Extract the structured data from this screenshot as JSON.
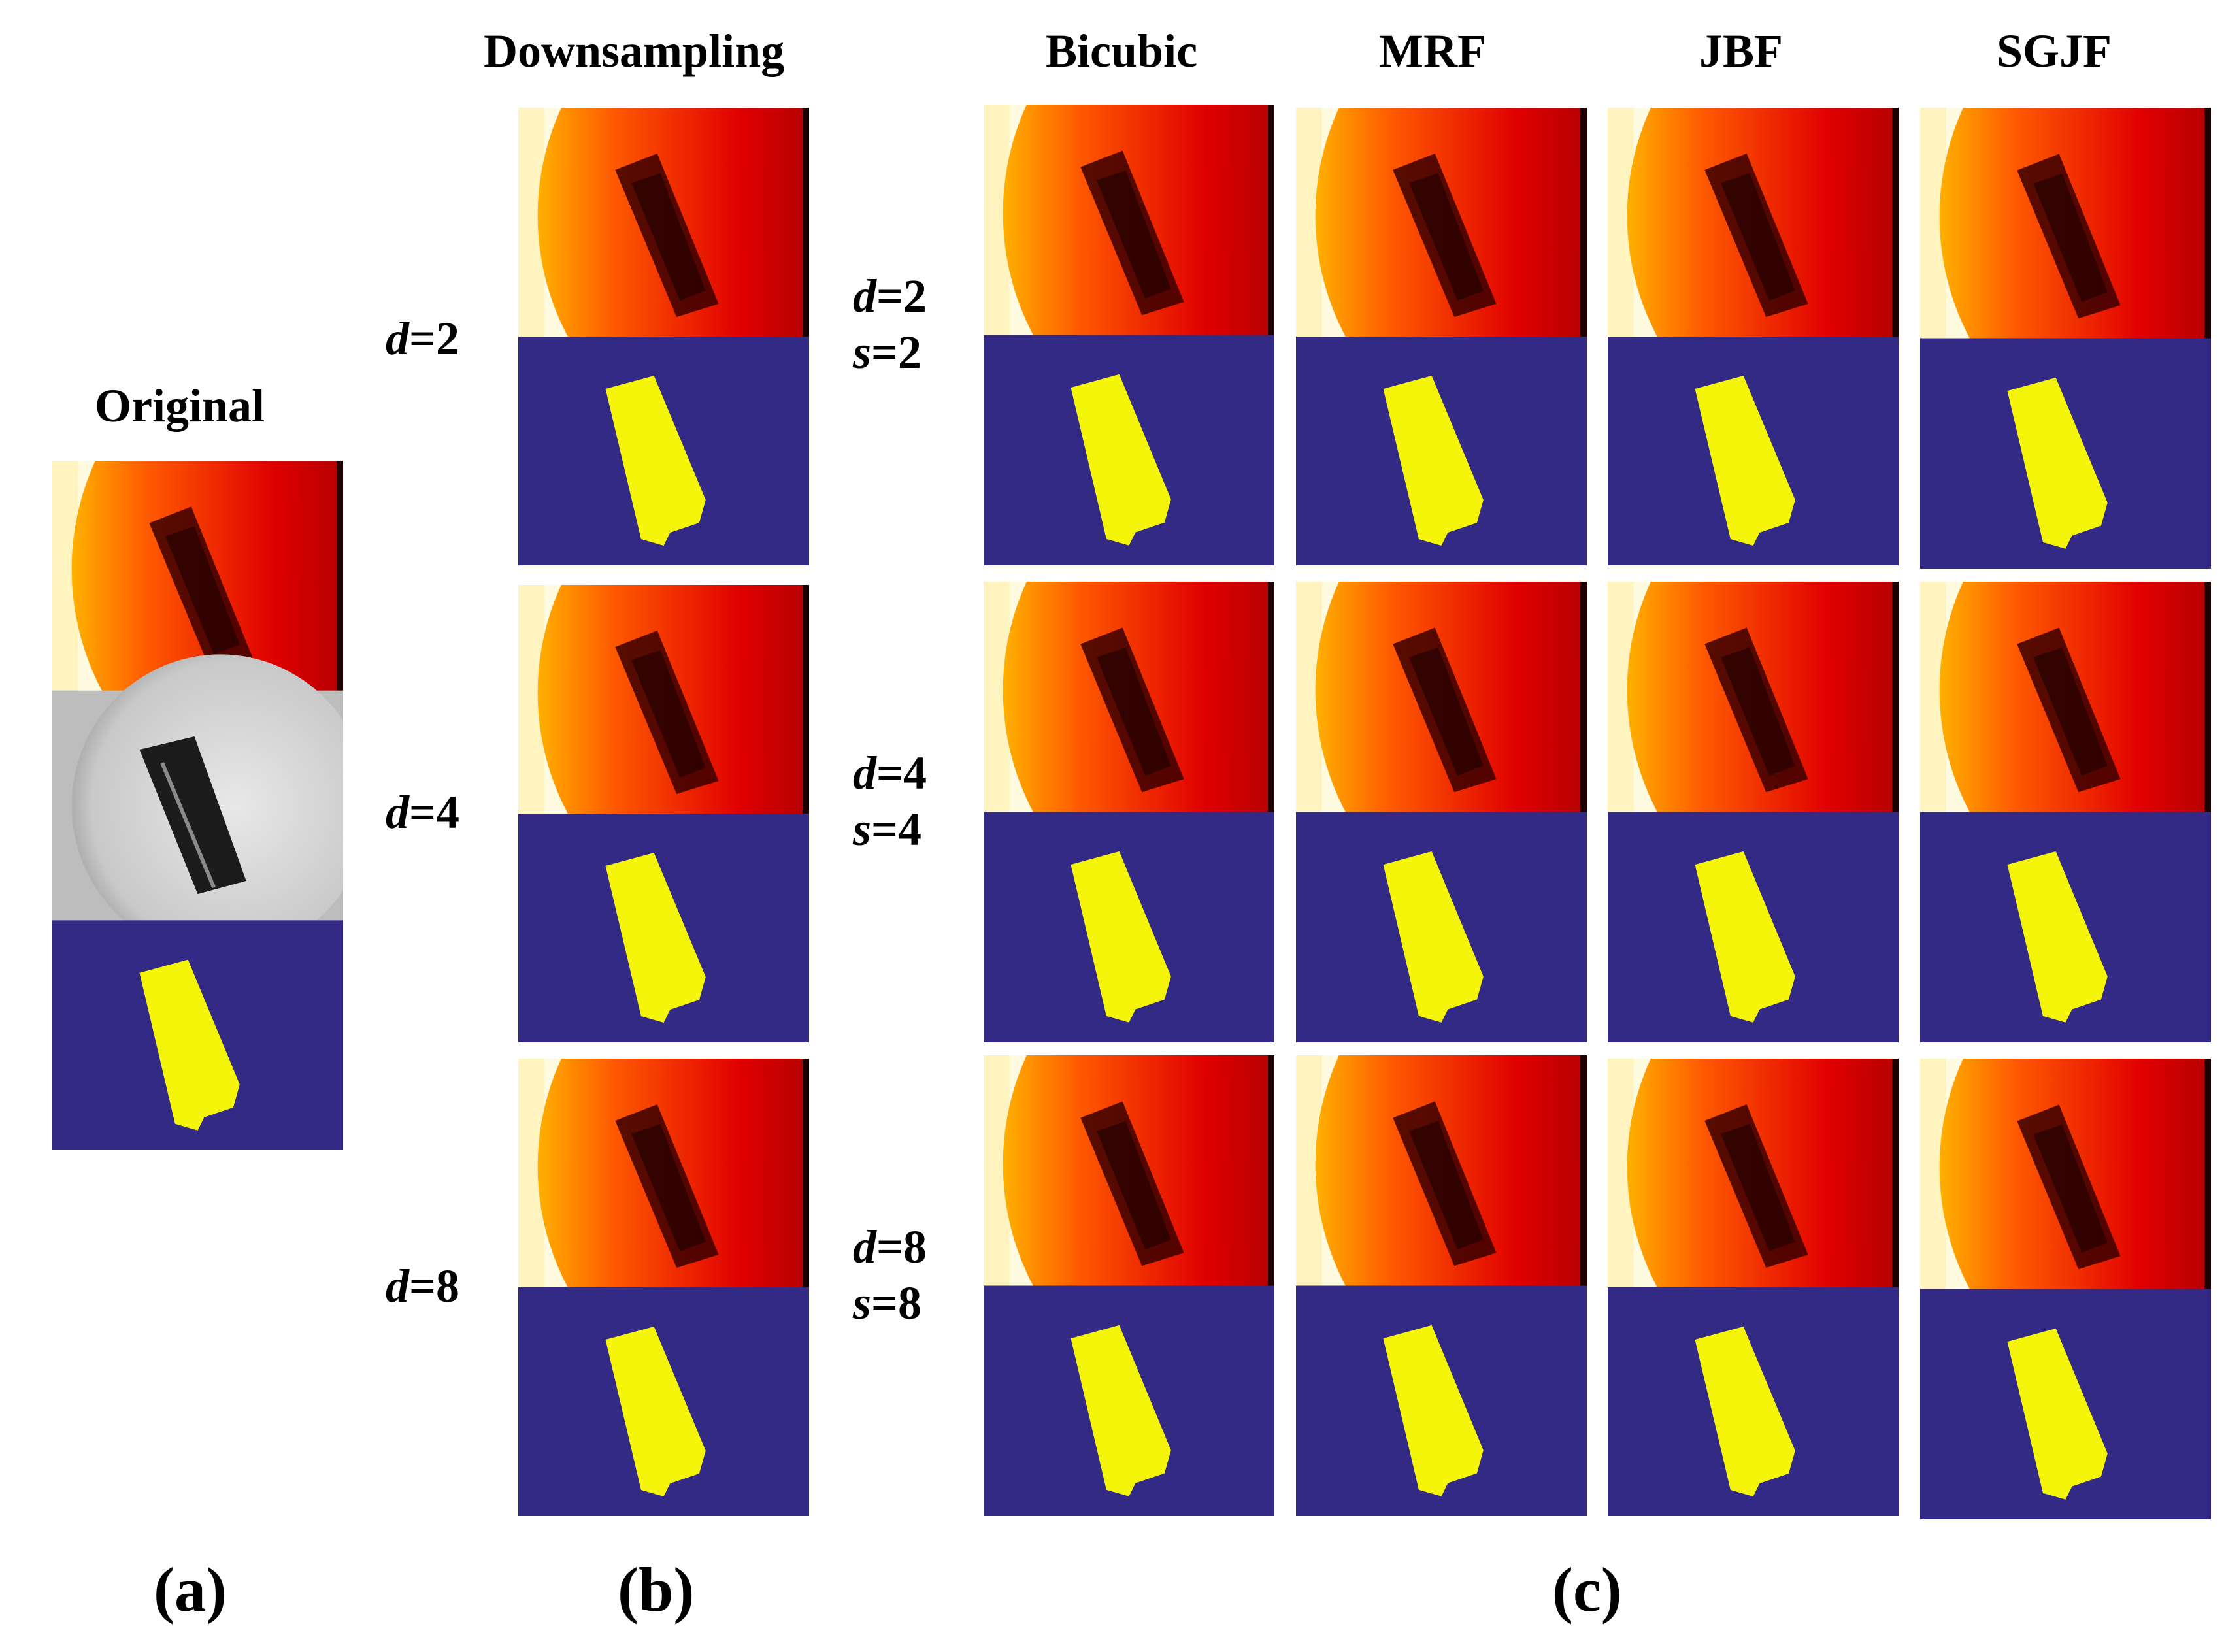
{
  "figure": {
    "original_title": "Original",
    "column_headers": {
      "downsampling": "Downsampling",
      "bicubic": "Bicubic",
      "mrf": "MRF",
      "jbf": "JBF",
      "sgjf": "SGJF"
    },
    "row_labels_b": [
      {
        "var": "d",
        "eq": "=2"
      },
      {
        "var": "d",
        "eq": "=4"
      },
      {
        "var": "d",
        "eq": "=8"
      }
    ],
    "row_labels_c": [
      {
        "d_var": "d",
        "d_eq": "=2",
        "s_var": "s",
        "s_eq": "=2"
      },
      {
        "d_var": "d",
        "d_eq": "=4",
        "s_var": "s",
        "s_eq": "=4"
      },
      {
        "d_var": "d",
        "d_eq": "=8",
        "s_var": "s",
        "s_eq": "=8"
      }
    ],
    "captions": {
      "a": "(a)",
      "b": "(b)",
      "c": "(c)"
    },
    "colors": {
      "background": "#ffffff",
      "mask_background": "#332a85",
      "mask_object": "#f5f50a",
      "depth_far": "#1e0000",
      "depth_mid": "#e00000",
      "depth_near": "#ffa500",
      "depth_bg": "#fffbe0"
    },
    "image_kinds": {
      "depth": "heatmap-depth-image",
      "mask": "segmentation-mask-image",
      "intensity": "grayscale-intensity-image"
    }
  }
}
